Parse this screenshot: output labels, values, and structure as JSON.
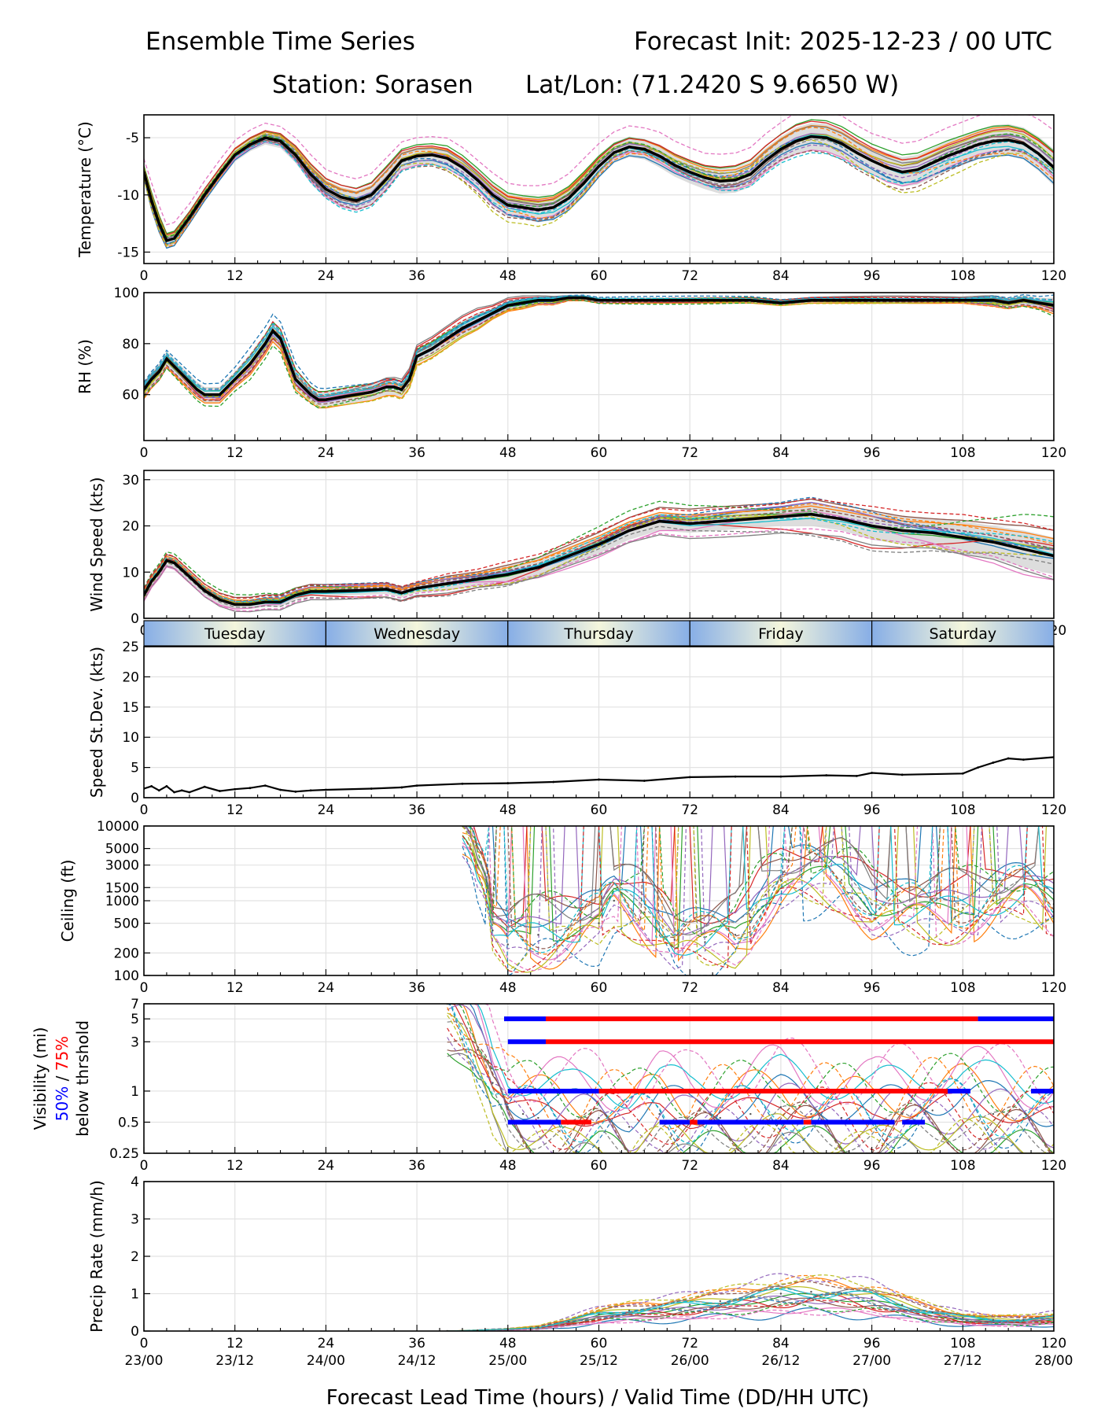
{
  "header": {
    "title": "Ensemble Time Series",
    "forecast_init": "Forecast Init: 2025-12-23 / 00 UTC",
    "station": "Station: Sorasen",
    "latlon": "Lat/Lon: (71.2420 S 9.6650 W)"
  },
  "x_axis": {
    "label": "Forecast Lead Time (hours) / Valid Time (DD/HH UTC)",
    "range": [
      0,
      120
    ],
    "lead_ticks": [
      "0",
      "12",
      "24",
      "36",
      "48",
      "60",
      "72",
      "84",
      "96",
      "108",
      "120"
    ],
    "valid_ticks": [
      "23/00",
      "23/12",
      "24/00",
      "24/12",
      "25/00",
      "25/12",
      "26/00",
      "26/12",
      "27/00",
      "27/12",
      "28/00"
    ]
  },
  "day_band": [
    "Tuesday",
    "Wednesday",
    "Thursday",
    "Friday",
    "Saturday"
  ],
  "visibility_label": {
    "line1": "Visibility (mi)",
    "pct50": "50%",
    "sep": " / ",
    "pct75": "75%",
    "line3": "below thrshold"
  },
  "colors": {
    "mean": "#000000",
    "spread": "#d4d4d4",
    "pct50": "#0000ff",
    "pct75": "#ff0000",
    "members": [
      "#1f77b4",
      "#ff7f0e",
      "#2ca02c",
      "#d62728",
      "#9467bd",
      "#8c564b",
      "#e377c2",
      "#7f7f7f",
      "#bcbd22",
      "#17becf"
    ]
  },
  "chart_data": [
    {
      "type": "line",
      "id": "temperature",
      "ylabel": "Temperature (°C)",
      "ylim": [
        -16,
        -3
      ],
      "yticks": [
        "-5",
        "-10",
        "-15"
      ],
      "x": [
        0,
        1,
        2,
        3,
        4,
        6,
        8,
        10,
        12,
        14,
        16,
        18,
        20,
        22,
        24,
        26,
        28,
        30,
        32,
        34,
        36,
        38,
        40,
        42,
        44,
        46,
        48,
        50,
        52,
        54,
        56,
        58,
        60,
        62,
        64,
        66,
        68,
        70,
        72,
        74,
        76,
        78,
        80,
        82,
        84,
        86,
        88,
        90,
        92,
        94,
        96,
        98,
        100,
        102,
        104,
        106,
        108,
        110,
        112,
        114,
        116,
        118,
        120
      ],
      "mean": [
        -8.0,
        -10.5,
        -12.5,
        -14.0,
        -13.8,
        -12.0,
        -10.0,
        -8.2,
        -6.5,
        -5.6,
        -5.0,
        -5.3,
        -6.5,
        -8.2,
        -9.5,
        -10.2,
        -10.5,
        -10.0,
        -8.6,
        -7.0,
        -6.6,
        -6.5,
        -6.8,
        -7.6,
        -8.7,
        -10.0,
        -10.9,
        -11.1,
        -11.3,
        -11.1,
        -10.3,
        -9.0,
        -7.5,
        -6.3,
        -5.8,
        -6.0,
        -6.6,
        -7.4,
        -8.0,
        -8.5,
        -8.8,
        -8.7,
        -8.2,
        -7.0,
        -6.0,
        -5.3,
        -4.9,
        -5.0,
        -5.5,
        -6.3,
        -7.0,
        -7.6,
        -8.0,
        -7.8,
        -7.2,
        -6.6,
        -6.1,
        -5.6,
        -5.3,
        -5.2,
        -5.5,
        -6.4,
        -7.6
      ],
      "spread": [
        0.6,
        0.8,
        0.8,
        0.7,
        0.7,
        0.6,
        0.6,
        0.6,
        0.6,
        0.6,
        0.6,
        0.6,
        0.7,
        0.8,
        0.8,
        0.9,
        0.9,
        0.9,
        0.9,
        0.8,
        0.8,
        0.8,
        0.9,
        0.9,
        0.9,
        1.0,
        1.0,
        1.0,
        1.1,
        1.1,
        1.1,
        1.1,
        1.0,
        0.9,
        0.9,
        0.9,
        1.0,
        1.0,
        1.0,
        1.0,
        1.1,
        1.1,
        1.1,
        1.1,
        1.1,
        1.2,
        1.2,
        1.2,
        1.2,
        1.2,
        1.2,
        1.3,
        1.3,
        1.3,
        1.3,
        1.3,
        1.3,
        1.3,
        1.4,
        1.4,
        1.4,
        1.5,
        1.6
      ]
    },
    {
      "type": "line",
      "id": "rh",
      "ylabel": "RH (%)",
      "ylim": [
        42,
        100
      ],
      "yticks": [
        "100",
        "80",
        "60"
      ],
      "x": [
        0,
        1,
        2,
        3,
        4,
        5,
        6,
        7,
        8,
        10,
        12,
        14,
        16,
        17,
        18,
        19,
        20,
        22,
        23,
        24,
        26,
        28,
        30,
        32,
        33,
        34,
        35,
        36,
        38,
        40,
        42,
        44,
        46,
        48,
        50,
        52,
        54,
        56,
        58,
        60,
        64,
        68,
        72,
        76,
        80,
        84,
        88,
        92,
        96,
        100,
        104,
        108,
        112,
        114,
        116,
        118,
        120
      ],
      "mean": [
        62,
        66,
        69,
        74,
        71,
        68,
        65,
        62,
        60,
        60,
        66,
        72,
        80,
        85,
        82,
        74,
        66,
        60,
        58,
        58,
        59,
        60,
        61,
        63,
        63,
        62,
        66,
        75,
        78,
        82,
        86,
        89,
        92,
        95,
        96,
        97,
        97,
        98,
        98,
        97,
        97,
        97,
        97,
        97,
        97,
        96,
        97,
        97,
        97,
        97,
        97,
        97,
        97,
        96,
        97,
        96,
        95
      ],
      "spread": [
        3,
        3,
        3,
        3,
        3,
        3,
        3,
        3,
        3,
        3,
        3,
        4,
        4,
        4,
        4,
        4,
        4,
        3,
        3,
        3,
        3,
        3,
        3,
        3,
        3,
        3,
        3,
        3,
        3,
        3,
        3,
        3,
        2,
        2,
        2,
        1.5,
        1.5,
        1,
        1,
        1,
        1,
        1,
        1,
        1,
        1,
        1,
        1,
        1,
        1,
        1,
        1,
        1,
        2,
        2,
        2,
        2,
        3
      ]
    },
    {
      "type": "line",
      "id": "wind_speed",
      "ylabel": "Wind Speed (kts)",
      "ylim": [
        0,
        32
      ],
      "yticks": [
        "0",
        "10",
        "20",
        "30"
      ],
      "x": [
        0,
        1,
        2,
        3,
        4,
        6,
        8,
        10,
        12,
        14,
        16,
        18,
        20,
        22,
        24,
        28,
        32,
        34,
        36,
        40,
        44,
        48,
        52,
        56,
        60,
        64,
        68,
        72,
        76,
        80,
        84,
        88,
        92,
        96,
        100,
        104,
        108,
        112,
        116,
        120
      ],
      "mean": [
        5,
        8,
        10,
        12.5,
        12,
        9,
        6,
        4,
        3,
        3,
        3.5,
        3.5,
        5,
        5.8,
        5.8,
        6,
        6.3,
        5.5,
        6.5,
        7.5,
        8.5,
        9.5,
        11,
        13.5,
        16,
        19,
        21,
        20.5,
        21,
        21.5,
        22,
        22.5,
        21.5,
        20,
        19,
        18.5,
        17.5,
        16.5,
        15,
        13.5
      ],
      "spread": [
        1,
        1,
        1,
        1,
        1,
        1,
        1,
        1,
        1,
        1,
        1,
        1,
        1,
        1,
        1,
        1,
        1,
        1,
        1,
        1.5,
        1.5,
        2,
        2,
        2,
        2,
        2,
        2,
        2,
        2,
        2,
        2,
        2.5,
        2.5,
        3,
        3,
        3,
        3.5,
        3.5,
        4,
        4
      ]
    },
    {
      "type": "line",
      "id": "speed_stdev",
      "ylabel": "Speed St.Dev. (kts)",
      "ylim": [
        0,
        25
      ],
      "yticks": [
        "0",
        "5",
        "10",
        "15",
        "20",
        "25"
      ],
      "x": [
        0,
        1,
        2,
        3,
        4,
        5,
        6,
        8,
        10,
        12,
        14,
        16,
        18,
        20,
        22,
        24,
        30,
        34,
        36,
        42,
        48,
        54,
        60,
        66,
        72,
        78,
        84,
        90,
        94,
        96,
        100,
        108,
        110,
        112,
        114,
        116,
        120
      ],
      "values": [
        1.5,
        1.9,
        1.2,
        1.9,
        0.9,
        1.2,
        0.9,
        1.8,
        1.1,
        1.4,
        1.6,
        2.0,
        1.3,
        1.0,
        1.2,
        1.3,
        1.5,
        1.7,
        2.0,
        2.3,
        2.4,
        2.6,
        3.0,
        2.8,
        3.4,
        3.5,
        3.5,
        3.7,
        3.6,
        4.1,
        3.8,
        4.0,
        5.0,
        5.8,
        6.5,
        6.3,
        6.7
      ]
    },
    {
      "type": "line",
      "id": "ceiling",
      "ylabel": "Ceiling (ft)",
      "scale": "log",
      "ylim": [
        100,
        10000
      ],
      "yticks": [
        "10000",
        "5000",
        "3000",
        "1500",
        "1000",
        "500",
        "200",
        "100"
      ],
      "x": [
        42,
        44,
        46,
        48,
        50,
        52,
        56,
        60,
        62,
        66,
        70,
        74,
        78,
        80,
        82,
        84,
        88,
        92,
        96,
        100,
        104,
        108,
        112,
        116,
        120
      ],
      "values": [
        10000,
        3000,
        400,
        260,
        300,
        350,
        420,
        500,
        1000,
        700,
        300,
        280,
        350,
        600,
        1200,
        1900,
        2000,
        1900,
        900,
        700,
        650,
        800,
        1000,
        1200,
        900
      ]
    },
    {
      "type": "line",
      "id": "visibility",
      "ylabel": "Visibility (mi)",
      "scale": "log",
      "ylim": [
        0.25,
        7
      ],
      "yticks": [
        "7",
        "5",
        "3",
        "1",
        "0.5",
        "0.25"
      ],
      "x": [
        40,
        44,
        46,
        48,
        50,
        52,
        56,
        60,
        64,
        68,
        72,
        76,
        80,
        84,
        88,
        92,
        96,
        100,
        104,
        108,
        112,
        116,
        120
      ],
      "values": [
        7,
        2.5,
        1.2,
        0.7,
        0.6,
        0.55,
        0.5,
        0.55,
        0.45,
        0.6,
        0.5,
        0.55,
        0.6,
        0.7,
        0.6,
        0.55,
        0.5,
        0.6,
        0.65,
        0.7,
        0.6,
        0.55,
        0.5
      ],
      "thresholds": [
        {
          "level": 5,
          "segments": [
            {
              "from": 47.5,
              "to": 53,
              "pct": "50%"
            },
            {
              "from": 53,
              "to": 110,
              "pct": "75%"
            },
            {
              "from": 110,
              "to": 120,
              "pct": "50%"
            }
          ]
        },
        {
          "level": 3,
          "segments": [
            {
              "from": 48,
              "to": 53,
              "pct": "50%"
            },
            {
              "from": 53,
              "to": 120,
              "pct": "75%"
            }
          ]
        },
        {
          "level": 1,
          "segments": [
            {
              "from": 48,
              "to": 60,
              "pct": "50%"
            },
            {
              "from": 60,
              "to": 106,
              "pct": "75%"
            },
            {
              "from": 106,
              "to": 109,
              "pct": "50%"
            },
            {
              "from": 117,
              "to": 120,
              "pct": "50%"
            }
          ]
        },
        {
          "level": 0.5,
          "segments": [
            {
              "from": 48,
              "to": 55,
              "pct": "50%"
            },
            {
              "from": 55,
              "to": 59,
              "pct": "75%"
            },
            {
              "from": 68,
              "to": 72,
              "pct": "50%"
            },
            {
              "from": 72,
              "to": 73,
              "pct": "75%"
            },
            {
              "from": 73,
              "to": 87,
              "pct": "50%"
            },
            {
              "from": 87,
              "to": 88,
              "pct": "75%"
            },
            {
              "from": 88,
              "to": 99,
              "pct": "50%"
            },
            {
              "from": 100,
              "to": 103,
              "pct": "50%"
            }
          ]
        }
      ]
    },
    {
      "type": "line",
      "id": "precip",
      "ylabel": "Precip Rate (mm/h)",
      "ylim": [
        0,
        4
      ],
      "yticks": [
        "0",
        "1",
        "2",
        "3",
        "4"
      ],
      "x": [
        0,
        40,
        44,
        48,
        52,
        56,
        60,
        64,
        68,
        72,
        76,
        80,
        84,
        88,
        92,
        96,
        100,
        104,
        108,
        112,
        116,
        120
      ],
      "values": [
        0,
        0,
        0.02,
        0.05,
        0.1,
        0.25,
        0.45,
        0.55,
        0.6,
        0.7,
        0.8,
        0.9,
        1.0,
        1.05,
        1.0,
        0.9,
        0.7,
        0.5,
        0.35,
        0.3,
        0.3,
        0.35
      ]
    }
  ]
}
